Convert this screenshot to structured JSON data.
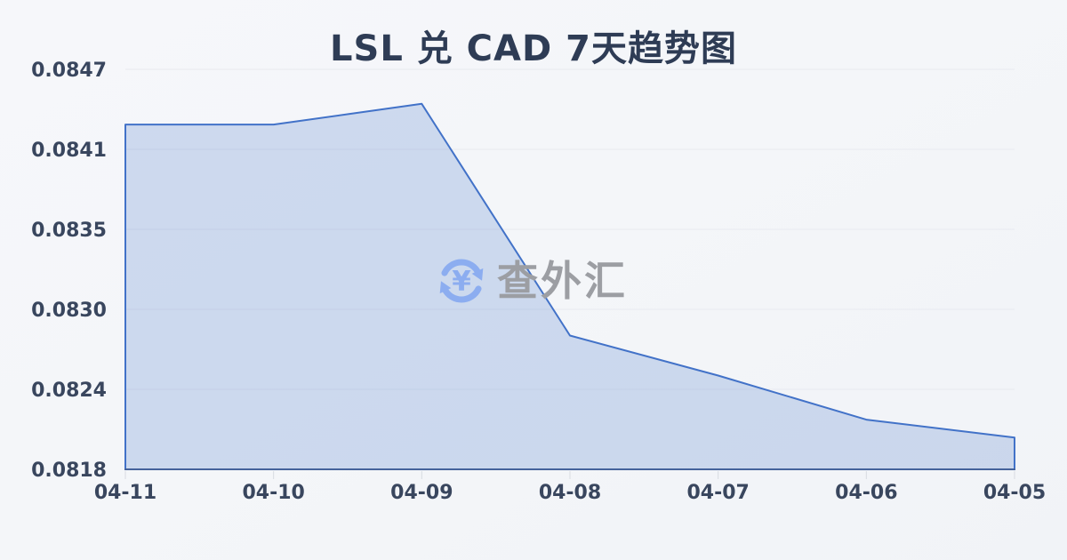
{
  "page": {
    "title": "LSL 兑 CAD 7天趋势图"
  },
  "watermark": {
    "icon": "currency-exchange-icon",
    "icon_symbol": "¥",
    "text": "查外汇",
    "icon_color": "#8cadf0",
    "text_color": "#9c9ea3"
  },
  "colors": {
    "background": "#f4f6f9",
    "line": "#4272c8",
    "fill": "rgba(66,114,200,0.22)",
    "axis": "#45639b",
    "grid": "#e8eaef",
    "tick": "#d8dbe1",
    "label": "#39465e",
    "title": "#2e3c55"
  },
  "chart_data": {
    "type": "area",
    "title": "LSL 兑 CAD 7天趋势图",
    "categories": [
      "04-11",
      "04-10",
      "04-09",
      "04-08",
      "04-07",
      "04-06",
      "04-05"
    ],
    "values": [
      0.0843,
      0.0843,
      0.08445,
      0.08277,
      0.08248,
      0.08216,
      0.08203
    ],
    "xlabel": "",
    "ylabel": "",
    "ylim": [
      0.0818,
      0.0847
    ],
    "y_tick_labels": [
      "0.0818",
      "0.0824",
      "0.0830",
      "0.0835",
      "0.0841",
      "0.0847"
    ],
    "grid": true,
    "legend_position": "none"
  }
}
